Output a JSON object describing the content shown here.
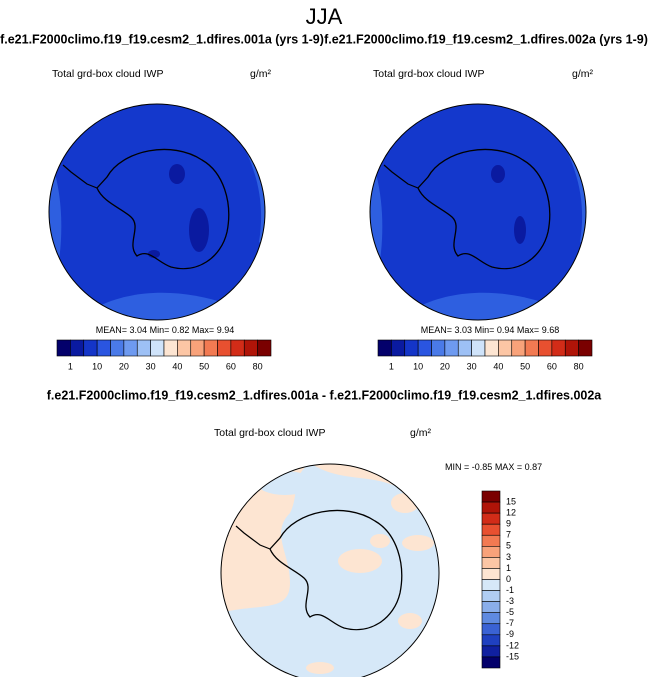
{
  "title": "JJA",
  "panels": [
    {
      "case": "f.e21.F2000climo.f19_f19.cesm2_1.dfires.001a (yrs 1-9)",
      "field": "Total grd-box cloud IWP",
      "units": "g/m²",
      "stats": [
        {
          "label": "MEAN=",
          "value": 3.04
        },
        {
          "label": "Min=",
          "value": 0.82
        },
        {
          "label": "Max=",
          "value": 9.94
        }
      ]
    },
    {
      "case": "f.e21.F2000climo.f19_f19.cesm2_1.dfires.002a (yrs 1-9)",
      "field": "Total grd-box cloud IWP",
      "units": "g/m²",
      "stats": [
        {
          "label": "MEAN=",
          "value": 3.03
        },
        {
          "label": "Min=",
          "value": 0.94
        },
        {
          "label": "Max=",
          "value": 9.68
        }
      ]
    }
  ],
  "colorbar": {
    "colors": [
      "#03006b",
      "#0a1aa0",
      "#1435c8",
      "#2a55e0",
      "#4a7ae8",
      "#6e9af0",
      "#9dc0f5",
      "#cfe3fa",
      "#fde5d2",
      "#fcc6a5",
      "#f8a27a",
      "#f27a52",
      "#e85030",
      "#d22c18",
      "#b01408",
      "#7a0000"
    ],
    "labels": [
      1,
      10,
      20,
      30,
      40,
      50,
      60,
      80
    ]
  },
  "difference": {
    "title": "f.e21.F2000climo.f19_f19.cesm2_1.dfires.001a - f.e21.F2000climo.f19_f19.cesm2_1.dfires.002a",
    "field": "Total grd-box cloud IWP",
    "units": "g/m²",
    "stats": [
      {
        "label": "MIN =",
        "value": -0.85
      },
      {
        "label": "MAX =",
        "value": 0.87
      }
    ],
    "colorbar": {
      "colors": [
        "#7a0000",
        "#b01408",
        "#d22c18",
        "#e85030",
        "#f27a52",
        "#f8a27a",
        "#fcc6a5",
        "#fde5d2",
        "#d6e8f8",
        "#b0cdf2",
        "#8aaeea",
        "#5f8ae0",
        "#3a62d4",
        "#1f40c0",
        "#1020a0",
        "#03006b"
      ],
      "labels": [
        15,
        12,
        9,
        7,
        5,
        3,
        1,
        0,
        -1,
        -3,
        -5,
        -7,
        -9,
        -12,
        -15
      ]
    }
  }
}
